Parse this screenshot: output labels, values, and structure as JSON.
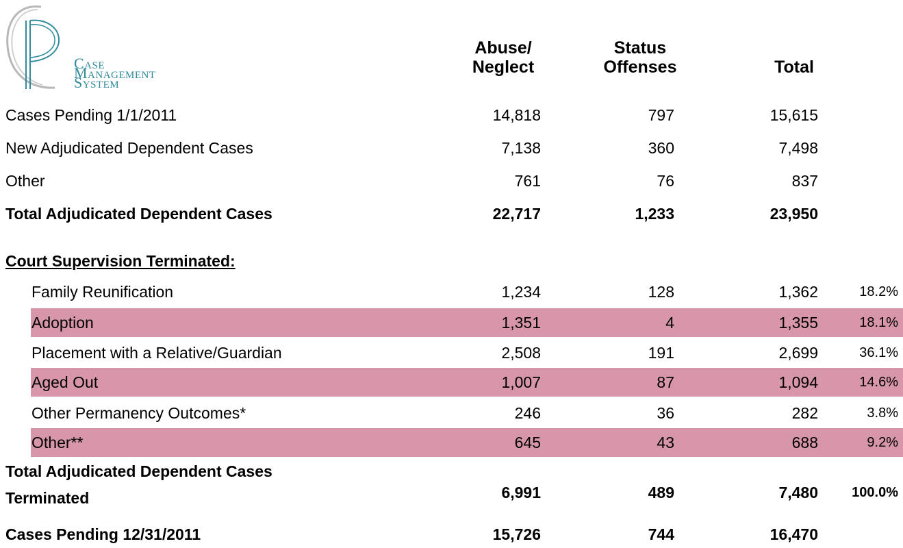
{
  "logo": {
    "lines": [
      "Case",
      "Management",
      "System"
    ]
  },
  "header": {
    "columns": [
      [
        "Abuse/",
        "Neglect"
      ],
      [
        "Status",
        "Offenses"
      ],
      [
        "Total"
      ]
    ]
  },
  "summary_rows": [
    {
      "label": "Cases Pending 1/1/2011",
      "cells": [
        "14,818",
        "797",
        "15,615"
      ]
    },
    {
      "label": "New Adjudicated Dependent Cases",
      "cells": [
        "7,138",
        "360",
        "7,498"
      ]
    },
    {
      "label": "Other",
      "cells": [
        "761",
        "76",
        "837"
      ]
    },
    {
      "label": "Total Adjudicated Dependent Cases",
      "cells": [
        "22,717",
        "1,233",
        "23,950"
      ]
    }
  ],
  "section_title": "Court Supervision Terminated:",
  "terminated_rows": [
    {
      "label": "Family Reunification",
      "cells": [
        "1,234",
        "128",
        "1,362"
      ],
      "percent": "18.2%"
    },
    {
      "label": "Adoption",
      "cells": [
        "1,351",
        "4",
        "1,355"
      ],
      "percent": "18.1%"
    },
    {
      "label": "Placement with a Relative/Guardian",
      "cells": [
        "2,508",
        "191",
        "2,699"
      ],
      "percent": "36.1%"
    },
    {
      "label": "Aged Out",
      "cells": [
        "1,007",
        "87",
        "1,094"
      ],
      "percent": "14.6%"
    },
    {
      "label": "Other Permanency Outcomes*",
      "cells": [
        "246",
        "36",
        "282"
      ],
      "percent": "3.8%"
    },
    {
      "label": "Other**",
      "cells": [
        "645",
        "43",
        "688"
      ],
      "percent": "9.2%"
    }
  ],
  "total_terminated": {
    "label": [
      "Total Adjudicated Dependent Cases",
      "Terminated"
    ],
    "cells": [
      "6,991",
      "489",
      "7,480"
    ],
    "percent": "100.0%"
  },
  "final_row": {
    "label": "Cases Pending 12/31/2011",
    "cells": [
      "15,726",
      "744",
      "16,470"
    ]
  }
}
